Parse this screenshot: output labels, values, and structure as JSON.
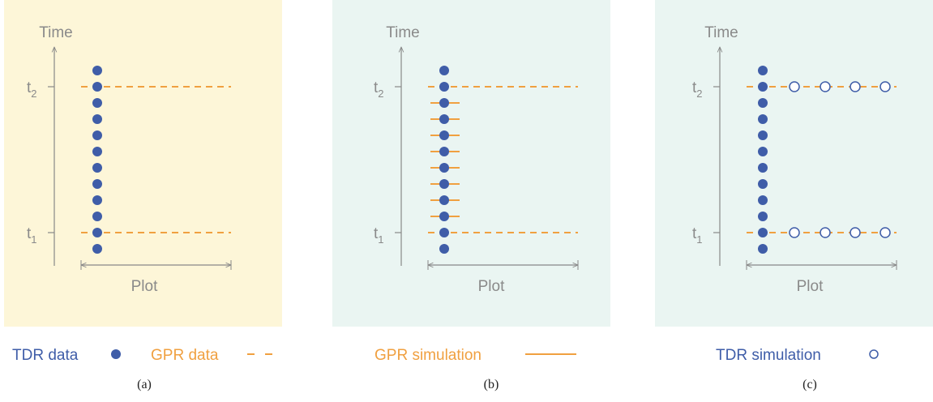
{
  "panels": [
    {
      "axis_label": "Time",
      "t2": {
        "base": "t",
        "sub": "2"
      },
      "t1": {
        "base": "t",
        "sub": "1"
      },
      "plot_label": "Plot",
      "caption": "(a)",
      "legend": [
        {
          "label": "TDR data"
        },
        {
          "label": "GPR data"
        }
      ]
    },
    {
      "axis_label": "Time",
      "t2": {
        "base": "t",
        "sub": "2"
      },
      "t1": {
        "base": "t",
        "sub": "1"
      },
      "plot_label": "Plot",
      "caption": "(b)",
      "legend": [
        {
          "label": "GPR simulation"
        }
      ]
    },
    {
      "axis_label": "Time",
      "t2": {
        "base": "t",
        "sub": "2"
      },
      "t1": {
        "base": "t",
        "sub": "1"
      },
      "plot_label": "Plot",
      "caption": "(c)",
      "legend": [
        {
          "label": "TDR simulation"
        }
      ]
    }
  ]
}
